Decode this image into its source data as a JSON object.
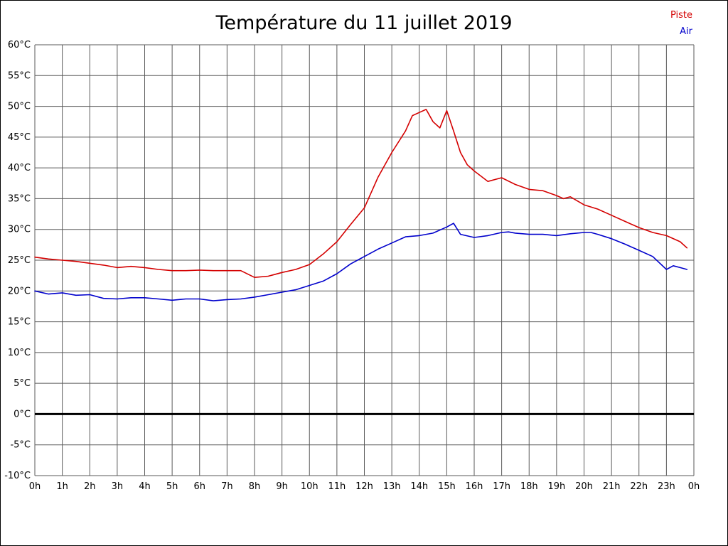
{
  "chart_data": {
    "type": "line",
    "title": "Température du 11 juillet 2019",
    "xlabel": "",
    "ylabel": "",
    "xlim": [
      0,
      24
    ],
    "ylim": [
      -10,
      60
    ],
    "y_step": 5,
    "grid": true,
    "grid_color": "#5a5a5a",
    "legend_position": "top-right",
    "x_tick_labels": [
      "0h",
      "1h",
      "2h",
      "3h",
      "4h",
      "5h",
      "6h",
      "7h",
      "8h",
      "9h",
      "10h",
      "11h",
      "12h",
      "13h",
      "14h",
      "15h",
      "16h",
      "17h",
      "18h",
      "19h",
      "20h",
      "21h",
      "22h",
      "23h",
      "0h"
    ],
    "y_tick_labels": [
      "60°C",
      "55°C",
      "50°C",
      "45°C",
      "40°C",
      "35°C",
      "30°C",
      "25°C",
      "20°C",
      "15°C",
      "10°C",
      "5°C",
      "0°C",
      "-5°C",
      "-10°C"
    ],
    "zero_line": {
      "value": 0,
      "color": "#000000",
      "width": 3
    },
    "series": [
      {
        "name": "Piste",
        "color": "#d40000",
        "points": [
          [
            0,
            25.5
          ],
          [
            0.5,
            25.2
          ],
          [
            1,
            25.0
          ],
          [
            1.5,
            24.8
          ],
          [
            2,
            24.5
          ],
          [
            2.5,
            24.2
          ],
          [
            3,
            23.8
          ],
          [
            3.5,
            24.0
          ],
          [
            4,
            23.8
          ],
          [
            4.5,
            23.5
          ],
          [
            5,
            23.3
          ],
          [
            5.5,
            23.3
          ],
          [
            6,
            23.4
          ],
          [
            6.5,
            23.3
          ],
          [
            7,
            23.3
          ],
          [
            7.5,
            23.3
          ],
          [
            8,
            22.2
          ],
          [
            8.5,
            22.4
          ],
          [
            9,
            23.0
          ],
          [
            9.5,
            23.5
          ],
          [
            10,
            24.3
          ],
          [
            10.5,
            26.0
          ],
          [
            11,
            28.0
          ],
          [
            11.5,
            30.8
          ],
          [
            12,
            33.5
          ],
          [
            12.5,
            38.5
          ],
          [
            13,
            42.5
          ],
          [
            13.5,
            46.0
          ],
          [
            13.75,
            48.5
          ],
          [
            14,
            49.0
          ],
          [
            14.25,
            49.5
          ],
          [
            14.5,
            47.5
          ],
          [
            14.75,
            46.5
          ],
          [
            15,
            49.3
          ],
          [
            15.25,
            46.0
          ],
          [
            15.5,
            42.5
          ],
          [
            15.75,
            40.5
          ],
          [
            16,
            39.5
          ],
          [
            16.5,
            37.8
          ],
          [
            17,
            38.4
          ],
          [
            17.5,
            37.3
          ],
          [
            18,
            36.5
          ],
          [
            18.5,
            36.3
          ],
          [
            19,
            35.5
          ],
          [
            19.25,
            35.0
          ],
          [
            19.5,
            35.3
          ],
          [
            20,
            34.0
          ],
          [
            20.5,
            33.3
          ],
          [
            21,
            32.3
          ],
          [
            21.5,
            31.3
          ],
          [
            22,
            30.3
          ],
          [
            22.5,
            29.5
          ],
          [
            23,
            29.0
          ],
          [
            23.5,
            28.0
          ],
          [
            23.75,
            27.0
          ]
        ]
      },
      {
        "name": "Air",
        "color": "#0000cc",
        "points": [
          [
            0,
            20.0
          ],
          [
            0.5,
            19.5
          ],
          [
            1,
            19.7
          ],
          [
            1.5,
            19.3
          ],
          [
            2,
            19.4
          ],
          [
            2.5,
            18.8
          ],
          [
            3,
            18.7
          ],
          [
            3.5,
            18.9
          ],
          [
            4,
            18.9
          ],
          [
            4.5,
            18.7
          ],
          [
            5,
            18.5
          ],
          [
            5.5,
            18.7
          ],
          [
            6,
            18.7
          ],
          [
            6.5,
            18.4
          ],
          [
            7,
            18.6
          ],
          [
            7.5,
            18.7
          ],
          [
            8,
            19.0
          ],
          [
            8.5,
            19.4
          ],
          [
            9,
            19.8
          ],
          [
            9.5,
            20.2
          ],
          [
            10,
            20.9
          ],
          [
            10.5,
            21.6
          ],
          [
            11,
            22.8
          ],
          [
            11.5,
            24.4
          ],
          [
            12,
            25.6
          ],
          [
            12.5,
            26.8
          ],
          [
            13,
            27.8
          ],
          [
            13.5,
            28.8
          ],
          [
            14,
            29.0
          ],
          [
            14.5,
            29.4
          ],
          [
            15,
            30.4
          ],
          [
            15.25,
            31.0
          ],
          [
            15.5,
            29.2
          ],
          [
            16,
            28.7
          ],
          [
            16.5,
            29.0
          ],
          [
            17,
            29.5
          ],
          [
            17.25,
            29.6
          ],
          [
            17.5,
            29.4
          ],
          [
            18,
            29.2
          ],
          [
            18.5,
            29.2
          ],
          [
            19,
            29.0
          ],
          [
            19.5,
            29.3
          ],
          [
            20,
            29.5
          ],
          [
            20.25,
            29.5
          ],
          [
            20.5,
            29.2
          ],
          [
            21,
            28.5
          ],
          [
            21.5,
            27.6
          ],
          [
            22,
            26.6
          ],
          [
            22.5,
            25.6
          ],
          [
            23,
            23.5
          ],
          [
            23.25,
            24.1
          ],
          [
            23.5,
            23.8
          ],
          [
            23.75,
            23.5
          ]
        ]
      }
    ]
  }
}
